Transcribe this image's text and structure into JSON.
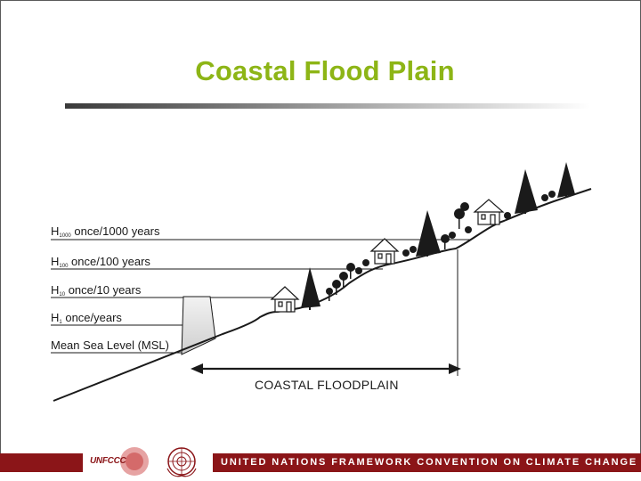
{
  "slide": {
    "title": "Coastal Flood Plain"
  },
  "diagram": {
    "levels": [
      {
        "id": "h1000",
        "main": "H",
        "sub": "1000",
        "rest": " once/1000 years"
      },
      {
        "id": "h100",
        "main": "H",
        "sub": "100",
        "rest": " once/100 years"
      },
      {
        "id": "h10",
        "main": "H",
        "sub": "10",
        "rest": " once/10 years"
      },
      {
        "id": "h1",
        "main": "H",
        "sub": "1",
        "rest": " once/years"
      },
      {
        "id": "msl",
        "main": "Mean Sea Level (MSL)",
        "sub": "",
        "rest": ""
      }
    ],
    "floodplain_label": "COASTAL FLOODPLAIN"
  },
  "footer": {
    "logo_text": "UNFCCC",
    "text": "UNITED NATIONS FRAMEWORK CONVENTION ON CLIMATE CHANGE",
    "bar_color": "#8b1518"
  },
  "colors": {
    "title": "#8db516",
    "lines": "#1a1a1a"
  }
}
